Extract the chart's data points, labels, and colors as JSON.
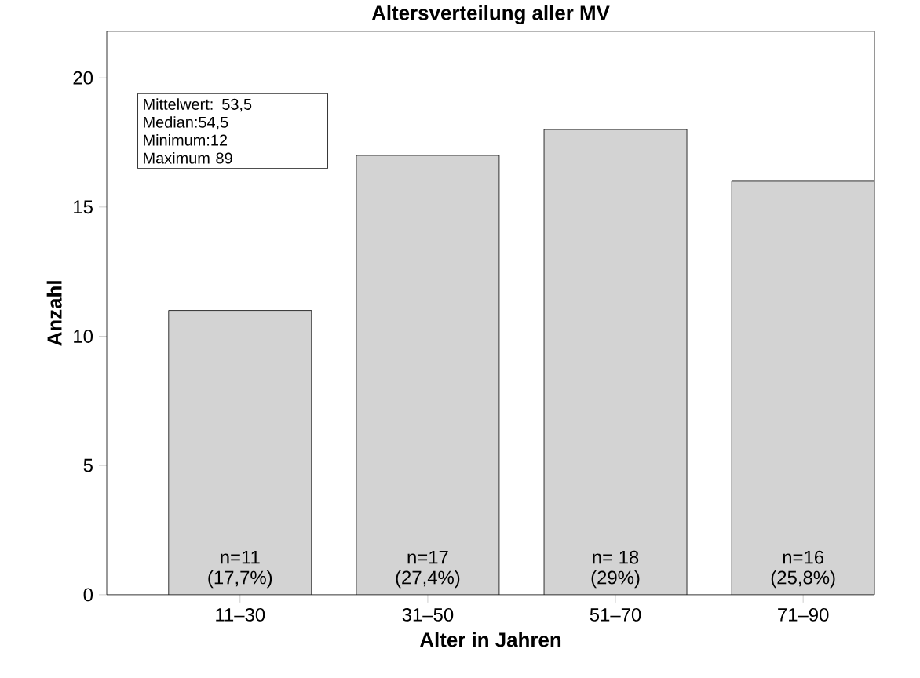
{
  "chart_data": {
    "type": "bar",
    "title": "Altersverteilung aller MV",
    "xlabel": "Alter in Jahren",
    "ylabel": "Anzahl",
    "categories": [
      "11–30",
      "31–50",
      "51–70",
      "71–90"
    ],
    "values": [
      11,
      17,
      18,
      16
    ],
    "color": "#d3d3d3",
    "ylim": [
      0,
      21.8
    ],
    "yticks": [
      0,
      5,
      10,
      15,
      20
    ],
    "grid": false,
    "annotations": [
      "Mittelwert: 53,5",
      "Median:54,5",
      "Minimum:12",
      "Maximum 89",
      "n=11",
      "(17,7%)",
      "n=17",
      "(27,4%)",
      "n= 18",
      "(29%)",
      "n=16",
      "(25,8%)"
    ]
  }
}
